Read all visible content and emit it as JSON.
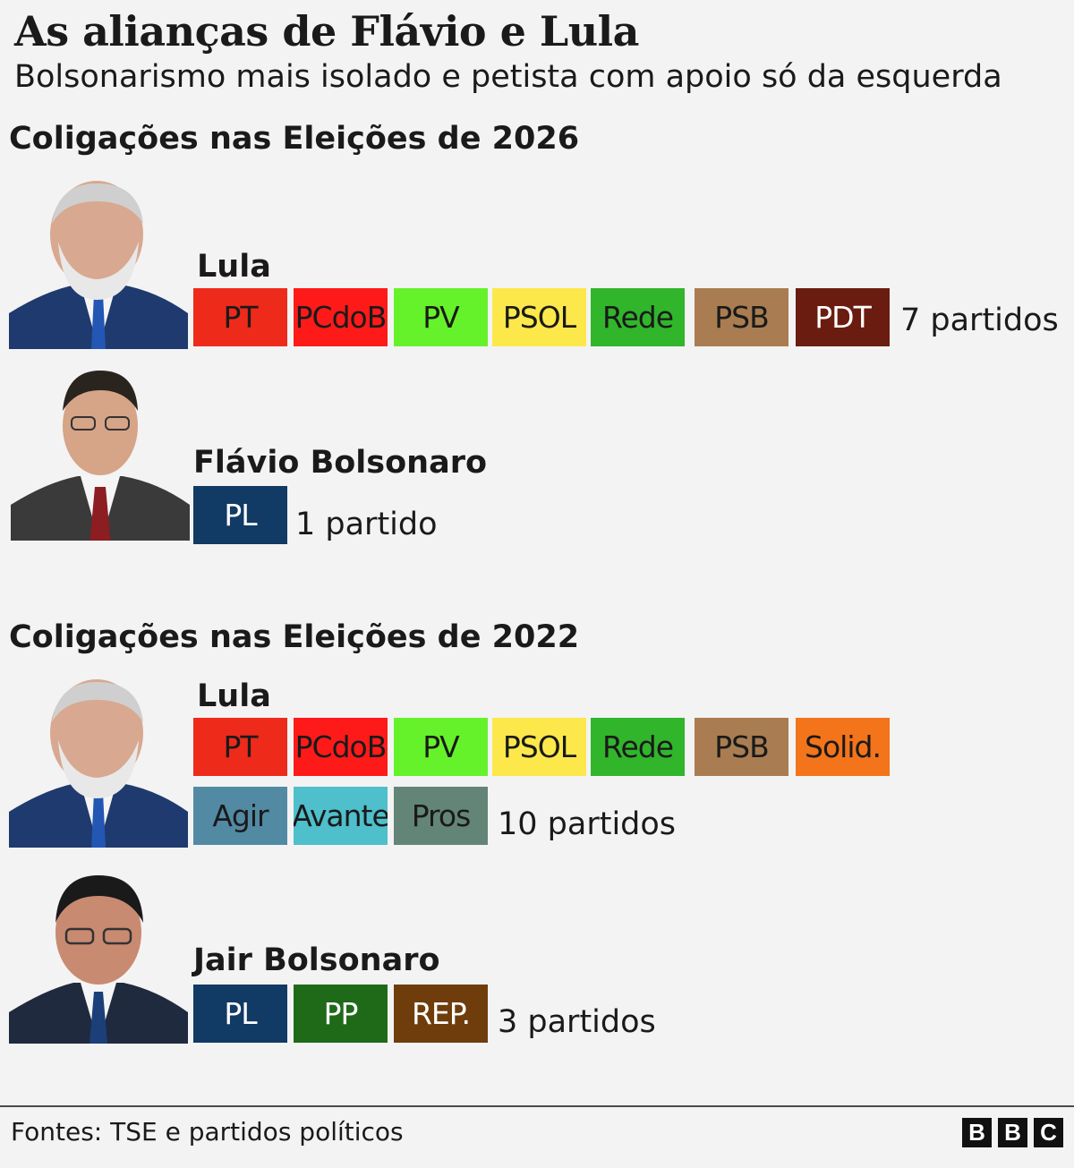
{
  "header": {
    "title": "As alianças de Flávio e Lula",
    "subtitle": "Bolsonarismo mais isolado e petista com apoio só da esquerda"
  },
  "sections": [
    {
      "title": "Coligações nas Eleições de 2026",
      "candidates": [
        {
          "name": "Lula",
          "photo": "lula-portrait",
          "parties": [
            {
              "label": "PT",
              "color": "#ee2a1b",
              "text_color": "#1a1a1a"
            },
            {
              "label": "PCdoB",
              "color": "#ff1a1a",
              "text_color": "#1a1a1a"
            },
            {
              "label": "PV",
              "color": "#66f22a",
              "text_color": "#1a1a1a"
            },
            {
              "label": "PSOL",
              "color": "#fde84b",
              "text_color": "#1a1a1a"
            },
            {
              "label": "Rede",
              "color": "#31b52b",
              "text_color": "#1a1a1a"
            },
            {
              "label": "PSB",
              "color": "#a97d51",
              "text_color": "#1a1a1a"
            },
            {
              "label": "PDT",
              "color": "#6b1c10",
              "text_color": "#ffffff"
            }
          ],
          "count": "7 partidos"
        },
        {
          "name": "Flávio Bolsonaro",
          "photo": "flavio-bolsonaro-portrait",
          "parties": [
            {
              "label": "PL",
              "color": "#113a64",
              "text_color": "#ffffff"
            }
          ],
          "count": "1 partido"
        }
      ]
    },
    {
      "title": "Coligações nas Eleições de 2022",
      "candidates": [
        {
          "name": "Lula",
          "photo": "lula-portrait",
          "parties": [
            {
              "label": "PT",
              "color": "#ee2a1b",
              "text_color": "#1a1a1a"
            },
            {
              "label": "PCdoB",
              "color": "#ff1a1a",
              "text_color": "#1a1a1a"
            },
            {
              "label": "PV",
              "color": "#66f22a",
              "text_color": "#1a1a1a"
            },
            {
              "label": "PSOL",
              "color": "#fde84b",
              "text_color": "#1a1a1a"
            },
            {
              "label": "Rede",
              "color": "#31b52b",
              "text_color": "#1a1a1a"
            },
            {
              "label": "PSB",
              "color": "#a97d51",
              "text_color": "#1a1a1a"
            },
            {
              "label": "Solid.",
              "color": "#f3741a",
              "text_color": "#1a1a1a"
            },
            {
              "label": "Agir",
              "color": "#528aa4",
              "text_color": "#1a1a1a"
            },
            {
              "label": "Avante",
              "color": "#4ebfcb",
              "text_color": "#1a1a1a"
            },
            {
              "label": "Pros",
              "color": "#638577",
              "text_color": "#1a1a1a"
            }
          ],
          "count": "10 partidos"
        },
        {
          "name": "Jair Bolsonaro",
          "photo": "jair-bolsonaro-portrait",
          "parties": [
            {
              "label": "PL",
              "color": "#113a64",
              "text_color": "#ffffff"
            },
            {
              "label": "PP",
              "color": "#1f6a19",
              "text_color": "#ffffff"
            },
            {
              "label": "REP.",
              "color": "#6f3d0c",
              "text_color": "#ffffff"
            }
          ],
          "count": "3 partidos"
        }
      ]
    }
  ],
  "footer": {
    "source": "Fontes: TSE e partidos políticos",
    "logo": [
      "B",
      "B",
      "C"
    ]
  }
}
